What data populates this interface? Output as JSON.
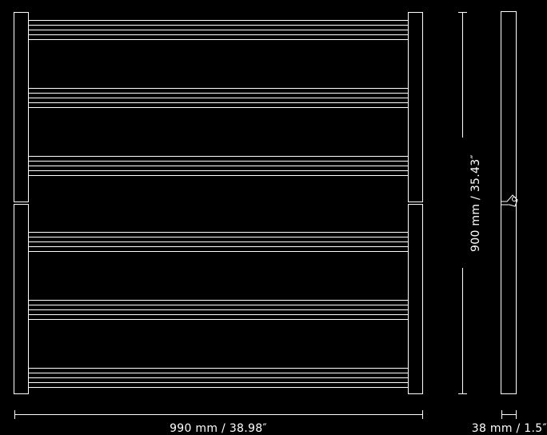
{
  "diagram": {
    "stroke_color": "#ffffff",
    "background_color": "#000000",
    "dimensions": {
      "width_label": "990 mm / 38.98″",
      "height_label": "900 mm / 35.43″",
      "depth_label": "38 mm / 1.5″"
    }
  }
}
